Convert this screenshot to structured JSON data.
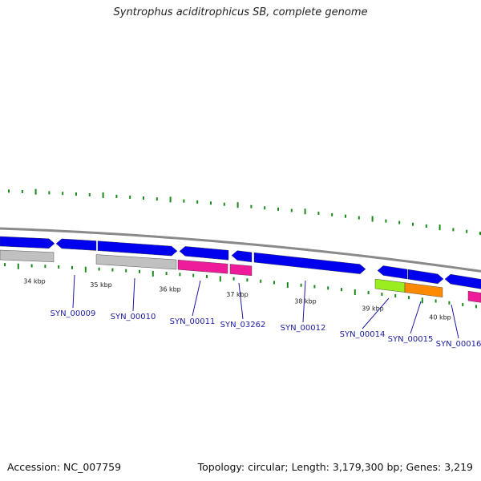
{
  "title": "Syntrophus aciditrophicus SB, complete genome",
  "footer": {
    "accession": "Accession: NC_007759",
    "topology": "Topology: circular; Length: 3,179,300 bp; Genes: 3,219"
  },
  "colors": {
    "backbone": "#8a8a8a",
    "cds": "#0000ee",
    "tick": "#1a8a1a",
    "gray": "#c0c0c0",
    "magenta": "#ee1c9a",
    "lime": "#9aee20",
    "orange": "#ff8a00",
    "label": "#1a1aa0"
  },
  "kbp_labels": [
    "34 kbp",
    "35 kbp",
    "36 kbp",
    "37 kbp",
    "38 kbp",
    "39 kbp",
    "40 kbp"
  ],
  "gene_labels": [
    "SYN_00009",
    "SYN_00010",
    "SYN_00011",
    "SYN_03262",
    "SYN_00012",
    "SYN_00014",
    "SYN_00015",
    "SYN_00016"
  ]
}
